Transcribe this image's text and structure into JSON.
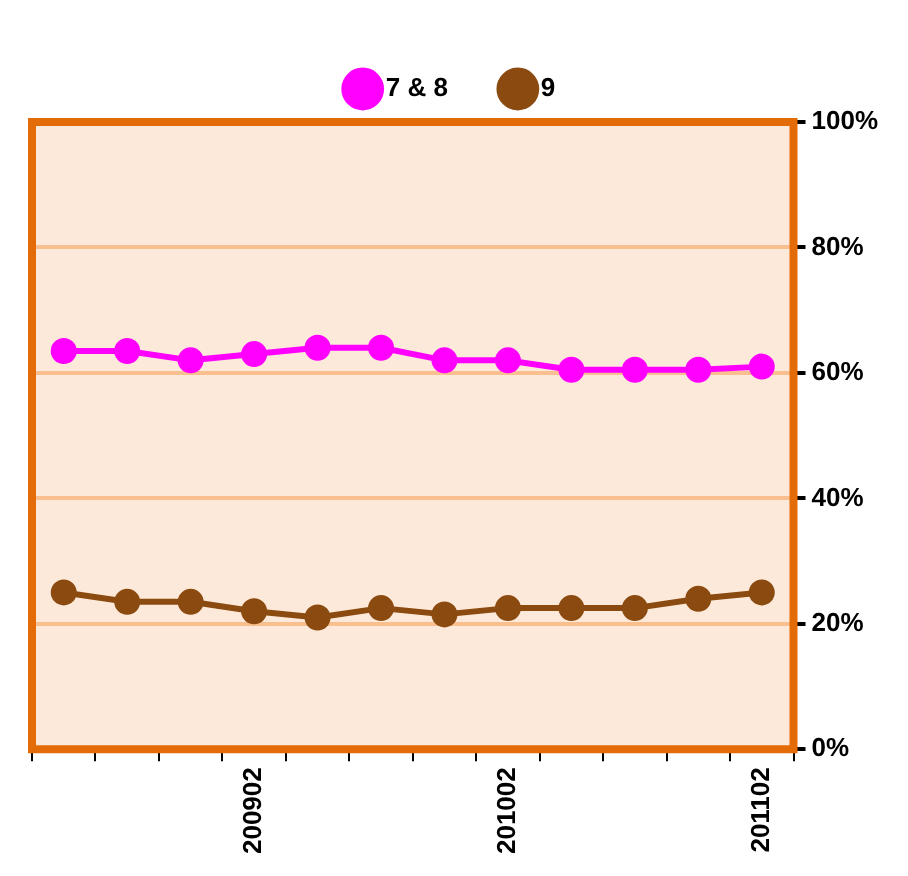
{
  "chart_data": {
    "type": "line",
    "categories": [
      null,
      null,
      null,
      "200902",
      null,
      null,
      null,
      "201002",
      null,
      null,
      null,
      "201102"
    ],
    "series": [
      {
        "name": "7 & 8",
        "color": "#ff00ff",
        "values": [
          63.5,
          63.5,
          62,
          63,
          64,
          64,
          62,
          62,
          60.5,
          60.5,
          60.5,
          61
        ]
      },
      {
        "name": "9",
        "color": "#8b4a0f",
        "values": [
          25,
          23.5,
          23.5,
          22,
          21,
          22.5,
          21.5,
          22.5,
          22.5,
          22.5,
          24,
          25
        ]
      }
    ],
    "ylim": [
      0,
      100
    ],
    "yticks": [
      {
        "value": 0,
        "label": "0%"
      },
      {
        "value": 20,
        "label": "20%"
      },
      {
        "value": 40,
        "label": "40%"
      },
      {
        "value": 60,
        "label": "60%"
      },
      {
        "value": 80,
        "label": "80%"
      },
      {
        "value": 100,
        "label": "100%"
      }
    ],
    "grid": "y",
    "legend": "top",
    "marker": "circle"
  }
}
